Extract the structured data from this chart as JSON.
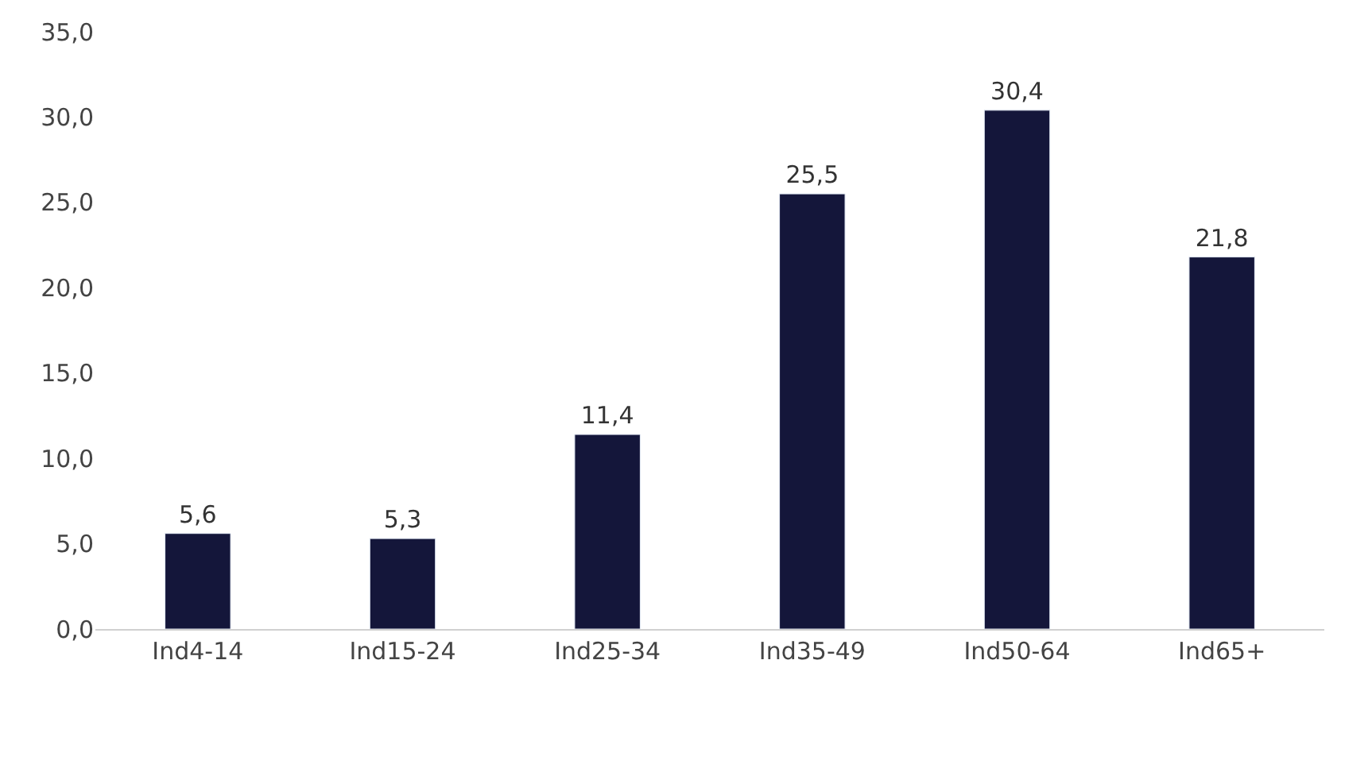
{
  "chart_data": {
    "type": "bar",
    "categories": [
      "Ind4-14",
      "Ind15-24",
      "Ind25-34",
      "Ind35-49",
      "Ind50-64",
      "Ind65+"
    ],
    "values": [
      5.6,
      5.3,
      11.4,
      25.5,
      30.4,
      21.8
    ],
    "value_labels": [
      "5,6",
      "5,3",
      "11,4",
      "25,5",
      "30,4",
      "21,8"
    ],
    "color": "#14163a",
    "ylim": [
      0,
      35
    ],
    "yticks": [
      {
        "value": 0,
        "label": "0,0"
      },
      {
        "value": 5,
        "label": "5,0"
      },
      {
        "value": 10,
        "label": "10,0"
      },
      {
        "value": 15,
        "label": "15,0"
      },
      {
        "value": 20,
        "label": "20,0"
      },
      {
        "value": 25,
        "label": "25,0"
      },
      {
        "value": 30,
        "label": "30,0"
      },
      {
        "value": 35,
        "label": "35,0"
      }
    ],
    "legend": false
  }
}
